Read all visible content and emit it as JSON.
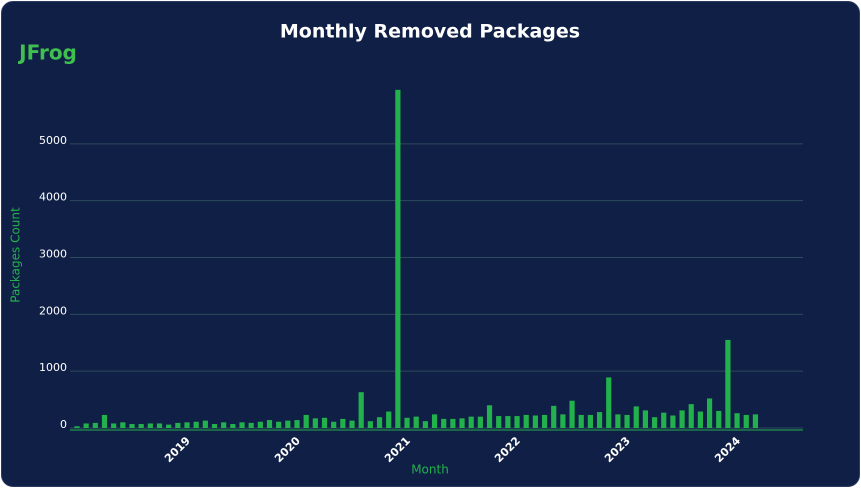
{
  "logo": "JFrog",
  "chart_data": {
    "type": "bar",
    "title": "Monthly Removed Packages",
    "x_label": "Month",
    "y_label": "Packages Count",
    "categories": [
      null,
      null,
      null,
      null,
      null,
      null,
      null,
      null,
      null,
      null,
      null,
      "2019",
      null,
      null,
      null,
      null,
      null,
      null,
      null,
      null,
      null,
      null,
      null,
      "2020",
      null,
      null,
      null,
      null,
      null,
      null,
      null,
      null,
      null,
      null,
      null,
      "2021",
      null,
      null,
      null,
      null,
      null,
      null,
      null,
      null,
      null,
      null,
      null,
      "2022",
      null,
      null,
      null,
      null,
      null,
      null,
      null,
      null,
      null,
      null,
      null,
      "2023",
      null,
      null,
      null,
      null,
      null,
      null,
      null,
      null,
      null,
      null,
      null,
      "2024",
      null,
      null,
      null
    ],
    "values": [
      30,
      80,
      90,
      230,
      80,
      100,
      70,
      70,
      80,
      80,
      60,
      90,
      100,
      110,
      130,
      70,
      100,
      70,
      100,
      90,
      110,
      140,
      110,
      130,
      140,
      230,
      170,
      180,
      110,
      160,
      130,
      630,
      120,
      190,
      290,
      5950,
      180,
      200,
      120,
      240,
      160,
      160,
      170,
      200,
      200,
      400,
      210,
      210,
      210,
      230,
      220,
      230,
      390,
      240,
      480,
      230,
      230,
      280,
      890,
      240,
      230,
      380,
      310,
      190,
      270,
      220,
      310,
      420,
      290,
      520,
      300,
      1550,
      260,
      230,
      240
    ],
    "color": "#22b14c",
    "ylim": [
      0,
      6000
    ],
    "yticks": [
      0,
      1000,
      2000,
      3000,
      4000,
      5000
    ],
    "grid": true
  }
}
